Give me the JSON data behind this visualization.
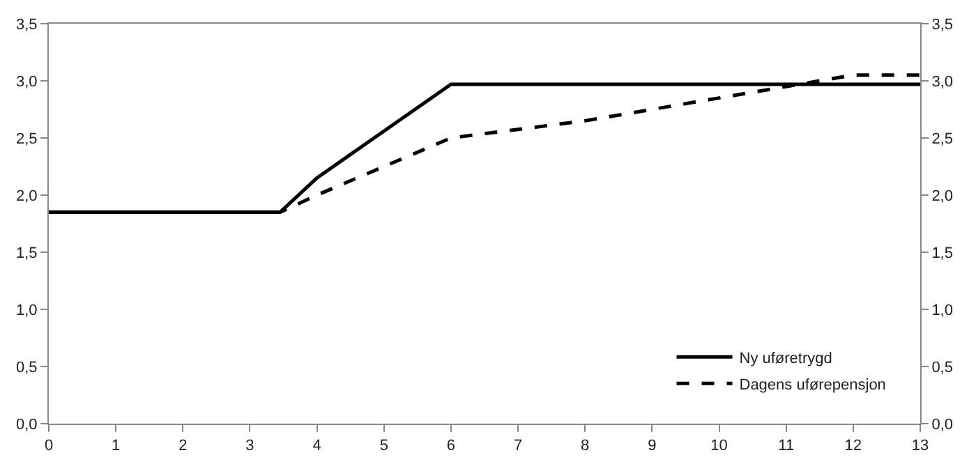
{
  "chart_data": {
    "type": "line",
    "x": [
      0,
      3.45,
      4,
      6,
      13
    ],
    "series": [
      {
        "name": "Ny uføretrygd",
        "color": "#000000",
        "line_style": "solid",
        "values": [
          1.85,
          1.85,
          2.15,
          2.97,
          2.97
        ]
      },
      {
        "name": "Dagens uførepensjon",
        "color": "#000000",
        "line_style": "dashed",
        "x": [
          0,
          3.45,
          4,
          6,
          8,
          9,
          10,
          11,
          11.5,
          12,
          13
        ],
        "values": [
          1.85,
          1.85,
          2.0,
          2.5,
          2.65,
          2.75,
          2.85,
          2.95,
          3.0,
          3.05,
          3.05
        ]
      }
    ],
    "xlim": [
      0,
      13
    ],
    "xticks": [
      0,
      1,
      2,
      3,
      4,
      5,
      6,
      7,
      8,
      9,
      10,
      11,
      12,
      13
    ],
    "ylim": [
      0,
      3.5
    ],
    "yticks": [
      {
        "value": 0,
        "label": "0,0"
      },
      {
        "value": 0.5,
        "label": "0,5"
      },
      {
        "value": 1,
        "label": "1,0"
      },
      {
        "value": 1.5,
        "label": "1,5"
      },
      {
        "value": 2,
        "label": "2,0"
      },
      {
        "value": 2.5,
        "label": "2,5"
      },
      {
        "value": 3,
        "label": "3,0"
      },
      {
        "value": 3.5,
        "label": "3,5"
      }
    ],
    "y2lim": [
      0,
      3.5
    ],
    "y2ticks": [
      {
        "value": 0,
        "label": "0,0"
      },
      {
        "value": 0.5,
        "label": "0,5"
      },
      {
        "value": 1,
        "label": "1,0"
      },
      {
        "value": 1.5,
        "label": "1,5"
      },
      {
        "value": 2,
        "label": "2,0"
      },
      {
        "value": 2.5,
        "label": "2,5"
      },
      {
        "value": 3,
        "label": "3,0"
      },
      {
        "value": 3.5,
        "label": "3,5"
      }
    ],
    "legend": "bottom right",
    "marker": "none"
  }
}
